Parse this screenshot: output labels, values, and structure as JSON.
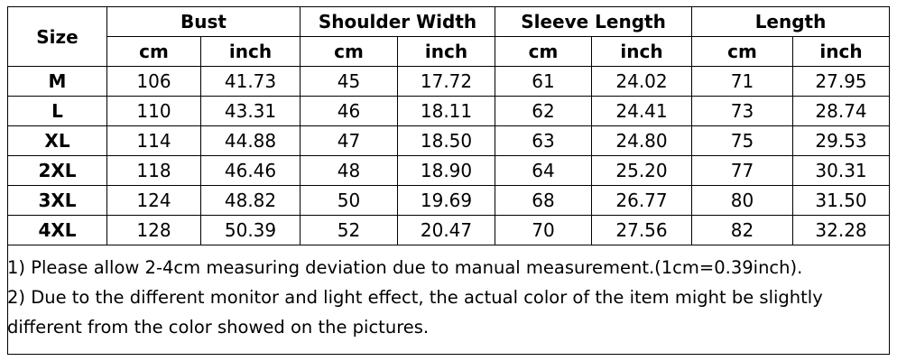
{
  "header": {
    "size": "Size",
    "groups": [
      {
        "label": "Bust",
        "units": [
          "cm",
          "inch"
        ]
      },
      {
        "label": "Shoulder Width",
        "units": [
          "cm",
          "inch"
        ]
      },
      {
        "label": "Sleeve Length",
        "units": [
          "cm",
          "inch"
        ]
      },
      {
        "label": "Length",
        "units": [
          "cm",
          "inch"
        ]
      }
    ]
  },
  "table": {
    "rows": [
      [
        "M",
        "106",
        "41.73",
        "45",
        "17.72",
        "61",
        "24.02",
        "71",
        "27.95"
      ],
      [
        "L",
        "110",
        "43.31",
        "46",
        "18.11",
        "62",
        "24.41",
        "73",
        "28.74"
      ],
      [
        "XL",
        "114",
        "44.88",
        "47",
        "18.50",
        "63",
        "24.80",
        "75",
        "29.53"
      ],
      [
        "2XL",
        "118",
        "46.46",
        "48",
        "18.90",
        "64",
        "25.20",
        "77",
        "30.31"
      ],
      [
        "3XL",
        "124",
        "48.82",
        "50",
        "19.69",
        "68",
        "26.77",
        "80",
        "31.50"
      ],
      [
        "4XL",
        "128",
        "50.39",
        "52",
        "20.47",
        "70",
        "27.56",
        "82",
        "32.28"
      ]
    ]
  },
  "notes": [
    "1) Please allow 2-4cm measuring deviation due to manual measurement.(1cm=0.39inch).",
    "2) Due to the different monitor and light effect, the actual color of the item might be slightly different from the color showed on the pictures."
  ]
}
